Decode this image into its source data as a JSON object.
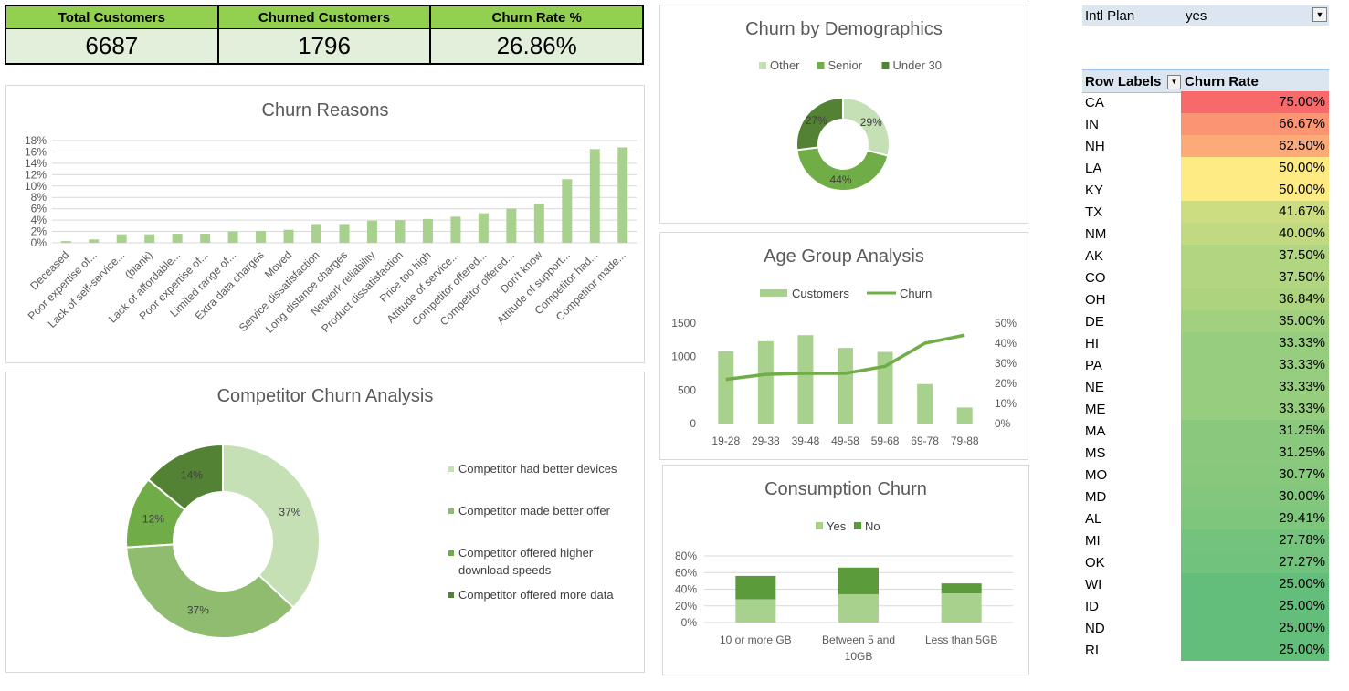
{
  "kpis": {
    "total_label": "Total Customers",
    "total_value": "6687",
    "churned_label": "Churned Customers",
    "churned_value": "1796",
    "rate_label": "Churn Rate %",
    "rate_value": "26.86%"
  },
  "colors": {
    "dark_green": "#548235",
    "mid_green": "#70ad47",
    "light_green": "#a9d18e",
    "pale_green": "#c5e0b4"
  },
  "chart_data": [
    {
      "id": "churn_reasons",
      "type": "bar",
      "title": "Churn Reasons",
      "categories": [
        "Deceased",
        "Poor expertise of...",
        "Lack of self-service...",
        "(blank)",
        "Lack of affordable...",
        "Poor expertise of...",
        "Limited range of...",
        "Extra data charges",
        "Moved",
        "Service dissatisfaction",
        "Long distance charges",
        "Network reliability",
        "Product dissatisfaction",
        "Price too high",
        "Attitude of service...",
        "Competitor offered...",
        "Competitor offered...",
        "Don't know",
        "Attitude of support...",
        "Competitor had...",
        "Competitor made..."
      ],
      "values": [
        0.3,
        0.6,
        1.5,
        1.5,
        1.6,
        1.6,
        2.0,
        2.1,
        2.3,
        3.3,
        3.3,
        3.9,
        4.0,
        4.2,
        4.6,
        5.2,
        6.0,
        6.9,
        11.2,
        16.5,
        16.8
      ],
      "yticks": [
        "0%",
        "2%",
        "4%",
        "6%",
        "8%",
        "10%",
        "12%",
        "14%",
        "16%",
        "18%"
      ],
      "ylim": [
        0,
        18
      ]
    },
    {
      "id": "demographics",
      "type": "pie",
      "title": "Churn by Demographics",
      "labels": [
        "Other",
        "Senior",
        "Under 30"
      ],
      "values": [
        29,
        44,
        27
      ],
      "value_labels": [
        "29%",
        "44%",
        "27%"
      ]
    },
    {
      "id": "age_group",
      "type": "bar",
      "title": "Age Group Analysis",
      "categories": [
        "19-28",
        "29-38",
        "39-48",
        "49-58",
        "59-68",
        "69-78",
        "79-88"
      ],
      "series": [
        {
          "name": "Customers",
          "values": [
            1080,
            1230,
            1320,
            1130,
            1070,
            590,
            240
          ]
        },
        {
          "name": "Churn",
          "values": [
            22,
            24.5,
            25,
            25,
            28.5,
            40,
            44
          ]
        }
      ],
      "yticks_left": [
        "0",
        "500",
        "1000",
        "1500"
      ],
      "yticks_right": [
        "0%",
        "10%",
        "20%",
        "30%",
        "40%",
        "50%"
      ],
      "ylim_left": [
        0,
        1500
      ],
      "ylim_right": [
        0,
        50
      ]
    },
    {
      "id": "competitor",
      "type": "pie",
      "title": "Competitor Churn Analysis",
      "labels": [
        "Competitor had better devices",
        "Competitor made better offer",
        "Competitor offered higher download speeds",
        "Competitor offered more data"
      ],
      "values": [
        37,
        37,
        12,
        14
      ],
      "value_labels": [
        "37%",
        "37%",
        "12%",
        "14%"
      ]
    },
    {
      "id": "consumption",
      "type": "bar",
      "title": "Consumption Churn",
      "categories": [
        "10 or more GB",
        "Between 5 and 10GB",
        "Less than 5GB"
      ],
      "series": [
        {
          "name": "Yes",
          "values": [
            28,
            34,
            35
          ]
        },
        {
          "name": "No",
          "values": [
            28,
            32,
            12
          ]
        }
      ],
      "yticks": [
        "0%",
        "20%",
        "40%",
        "60%",
        "80%"
      ],
      "ylim": [
        0,
        80
      ]
    }
  ],
  "pivot": {
    "filter_label": "Intl Plan",
    "filter_value": "yes",
    "col1": "Row Labels",
    "col2": "Churn Rate",
    "rows": [
      {
        "state": "CA",
        "rate": "75.00%",
        "v": 75.0
      },
      {
        "state": "IN",
        "rate": "66.67%",
        "v": 66.67
      },
      {
        "state": "NH",
        "rate": "62.50%",
        "v": 62.5
      },
      {
        "state": "LA",
        "rate": "50.00%",
        "v": 50.0
      },
      {
        "state": "KY",
        "rate": "50.00%",
        "v": 50.0
      },
      {
        "state": "TX",
        "rate": "41.67%",
        "v": 41.67
      },
      {
        "state": "NM",
        "rate": "40.00%",
        "v": 40.0
      },
      {
        "state": "AK",
        "rate": "37.50%",
        "v": 37.5
      },
      {
        "state": "CO",
        "rate": "37.50%",
        "v": 37.5
      },
      {
        "state": "OH",
        "rate": "36.84%",
        "v": 36.84
      },
      {
        "state": "DE",
        "rate": "35.00%",
        "v": 35.0
      },
      {
        "state": "HI",
        "rate": "33.33%",
        "v": 33.33
      },
      {
        "state": "PA",
        "rate": "33.33%",
        "v": 33.33
      },
      {
        "state": "NE",
        "rate": "33.33%",
        "v": 33.33
      },
      {
        "state": "ME",
        "rate": "33.33%",
        "v": 33.33
      },
      {
        "state": "MA",
        "rate": "31.25%",
        "v": 31.25
      },
      {
        "state": "MS",
        "rate": "31.25%",
        "v": 31.25
      },
      {
        "state": "MO",
        "rate": "30.77%",
        "v": 30.77
      },
      {
        "state": "MD",
        "rate": "30.00%",
        "v": 30.0
      },
      {
        "state": "AL",
        "rate": "29.41%",
        "v": 29.41
      },
      {
        "state": "MI",
        "rate": "27.78%",
        "v": 27.78
      },
      {
        "state": "OK",
        "rate": "27.27%",
        "v": 27.27
      },
      {
        "state": "WI",
        "rate": "25.00%",
        "v": 25.0
      },
      {
        "state": "ID",
        "rate": "25.00%",
        "v": 25.0
      },
      {
        "state": "ND",
        "rate": "25.00%",
        "v": 25.0
      },
      {
        "state": "RI",
        "rate": "25.00%",
        "v": 25.0
      }
    ]
  }
}
